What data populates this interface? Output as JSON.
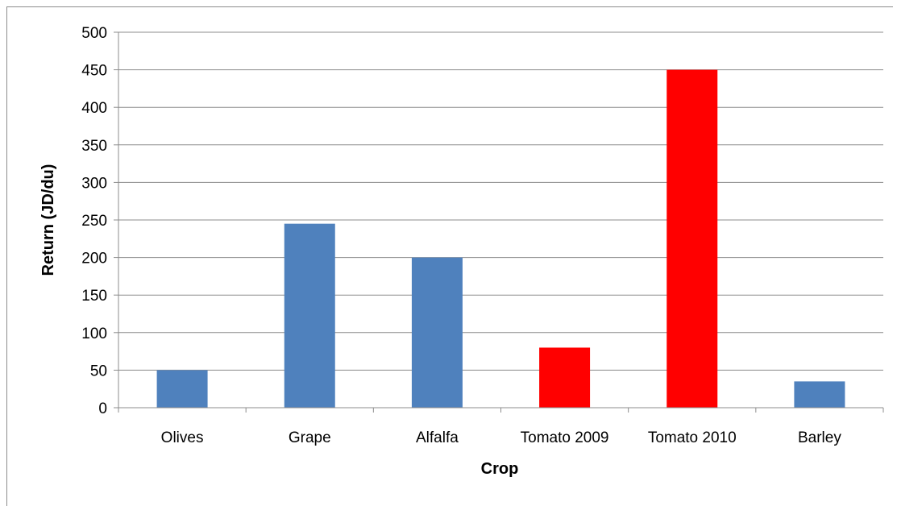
{
  "chart_data": {
    "type": "bar",
    "categories": [
      "Olives",
      "Grape",
      "Alfalfa",
      "Tomato 2009",
      "Tomato 2010",
      "Barley"
    ],
    "values": [
      50,
      245,
      200,
      80,
      450,
      35
    ],
    "colors": [
      "#4f81bd",
      "#4f81bd",
      "#4f81bd",
      "#ff0000",
      "#ff0000",
      "#4f81bd"
    ],
    "xlabel": "Crop",
    "ylabel": "Return (JD/du)",
    "ylim": [
      0,
      500
    ],
    "yticks": [
      0,
      50,
      100,
      150,
      200,
      250,
      300,
      350,
      400,
      450,
      500
    ],
    "grid": true
  }
}
